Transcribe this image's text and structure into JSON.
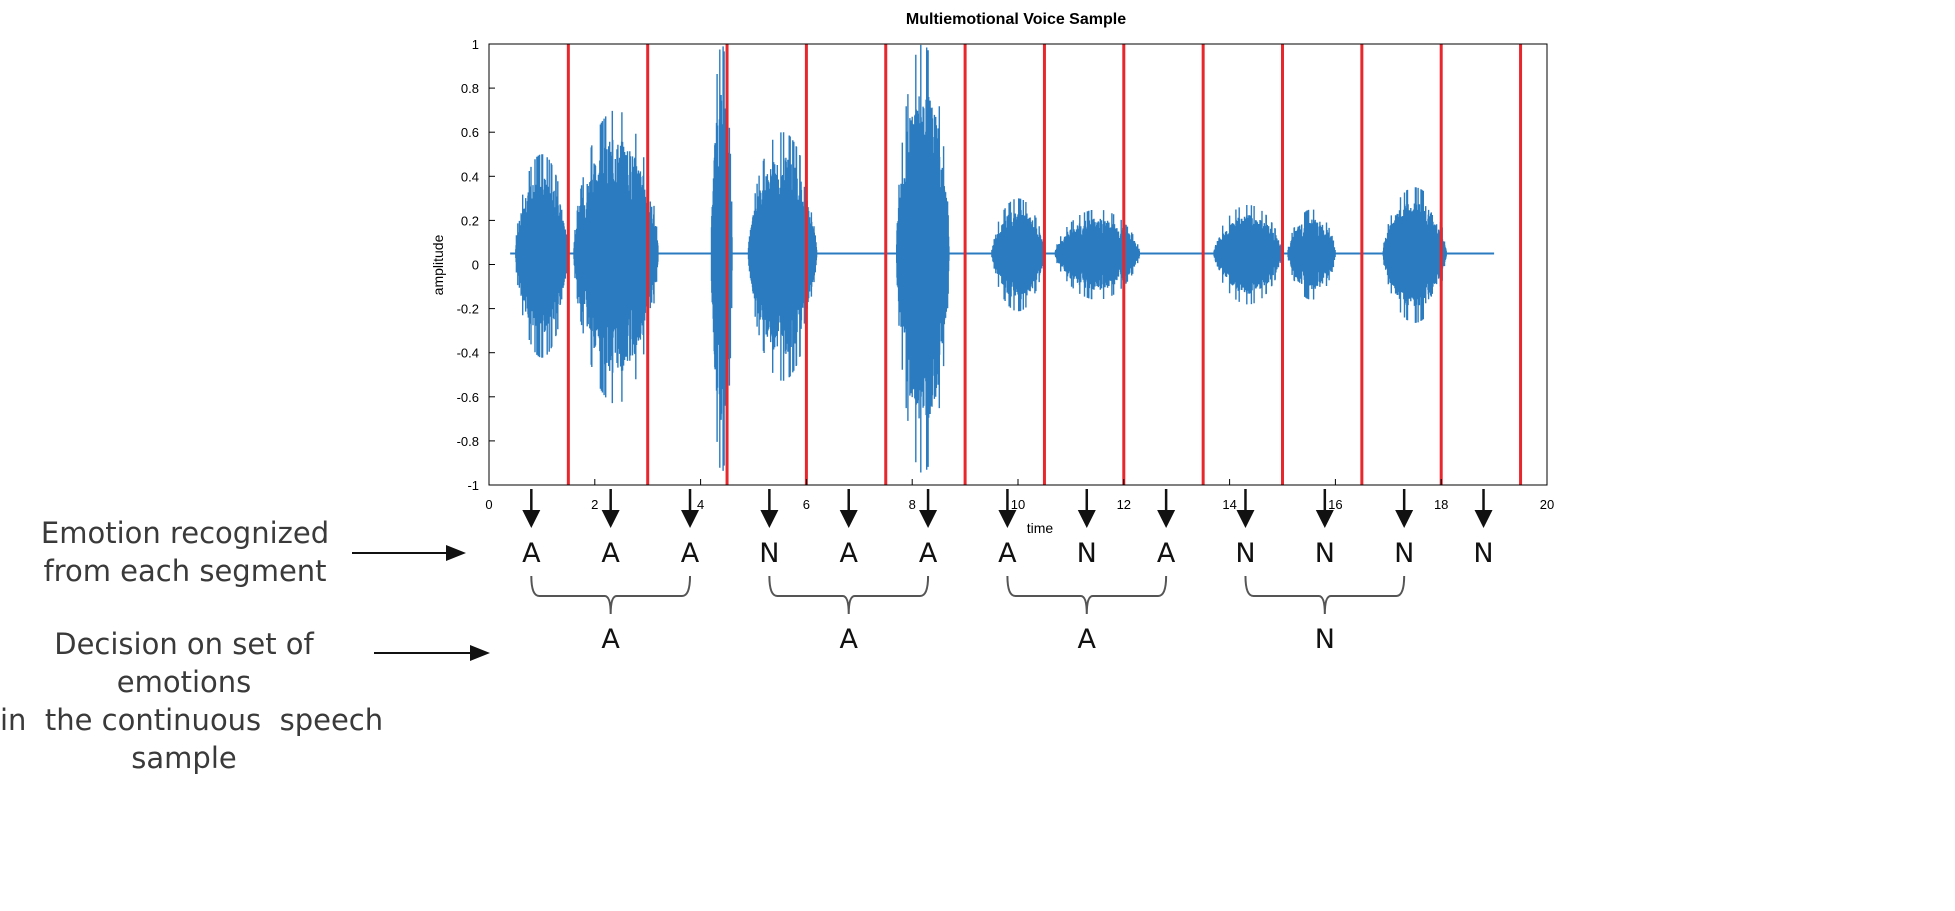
{
  "figure": {
    "title": "Multiemotional Voice Sample",
    "ylabel": "amplitude",
    "xlabel": "time",
    "recognized_caption": [
      "Emotion recognized",
      "from each segment"
    ],
    "decision_caption": [
      "Decision on set of emotions",
      "in  the continuous  speech",
      "sample"
    ],
    "colors": {
      "waveform": "#2a7bbf",
      "segment_lines": "#e8272d",
      "arrows": "#111111",
      "braces": "#555555"
    }
  },
  "chart_data": {
    "type": "line",
    "title": "Multiemotional Voice Sample",
    "xlabel": "time",
    "ylabel": "amplitude",
    "xlim": [
      0,
      20
    ],
    "ylim": [
      -1,
      1
    ],
    "x_ticks": [
      "0",
      "2",
      "4",
      "6",
      "8",
      "10",
      "12",
      "14",
      "16",
      "18",
      "20"
    ],
    "y_ticks": [
      "1",
      "0.8",
      "0.6",
      "0.4",
      "0.2",
      "0",
      "-0.2",
      "-0.4",
      "-0.6",
      "-0.8",
      "-1"
    ],
    "segment_boundaries": [
      1.5,
      3.0,
      4.5,
      6.0,
      7.5,
      9.0,
      10.5,
      12.0,
      13.5,
      15.0,
      16.5,
      18.0,
      19.5
    ],
    "waveform_bursts": [
      {
        "start": 0.5,
        "end": 1.5,
        "peak": 0.45
      },
      {
        "start": 1.6,
        "end": 3.2,
        "peak": 0.65
      },
      {
        "start": 4.2,
        "end": 4.6,
        "peak": 0.95
      },
      {
        "start": 4.9,
        "end": 6.2,
        "peak": 0.55
      },
      {
        "start": 7.7,
        "end": 8.7,
        "peak": 0.95
      },
      {
        "start": 9.5,
        "end": 10.5,
        "peak": 0.25
      },
      {
        "start": 10.7,
        "end": 12.3,
        "peak": 0.2
      },
      {
        "start": 13.7,
        "end": 15.0,
        "peak": 0.22
      },
      {
        "start": 15.1,
        "end": 16.0,
        "peak": 0.2
      },
      {
        "start": 16.9,
        "end": 18.1,
        "peak": 0.3
      }
    ],
    "segments": [
      {
        "time": 0.8,
        "emotion": "A"
      },
      {
        "time": 2.3,
        "emotion": "A"
      },
      {
        "time": 3.8,
        "emotion": "A"
      },
      {
        "time": 5.3,
        "emotion": "N"
      },
      {
        "time": 6.8,
        "emotion": "A"
      },
      {
        "time": 8.3,
        "emotion": "A"
      },
      {
        "time": 9.8,
        "emotion": "A"
      },
      {
        "time": 11.3,
        "emotion": "N"
      },
      {
        "time": 12.8,
        "emotion": "A"
      },
      {
        "time": 14.3,
        "emotion": "N"
      },
      {
        "time": 15.8,
        "emotion": "N"
      },
      {
        "time": 17.3,
        "emotion": "N"
      },
      {
        "time": 18.8,
        "emotion": "N"
      }
    ],
    "decisions": [
      {
        "from": 0,
        "to": 2,
        "emotion": "A"
      },
      {
        "from": 3,
        "to": 5,
        "emotion": "A"
      },
      {
        "from": 6,
        "to": 8,
        "emotion": "A"
      },
      {
        "from": 9,
        "to": 11,
        "emotion": "N"
      }
    ]
  }
}
